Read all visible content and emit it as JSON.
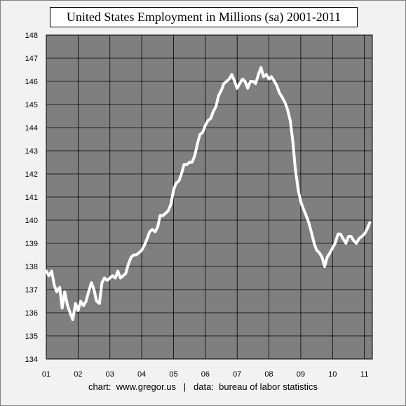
{
  "chart_data": {
    "type": "line",
    "title": "United States Employment in Millions (sa) 2001-2011",
    "footer": "chart:  www.gregor.us   |   data:  bureau of labor statistics",
    "ylim": [
      134,
      148
    ],
    "yticks": [
      "134",
      "135",
      "136",
      "137",
      "138",
      "139",
      "140",
      "141",
      "142",
      "143",
      "144",
      "145",
      "146",
      "147",
      "148"
    ],
    "xlim": [
      2001,
      2011.25
    ],
    "xticks": [
      {
        "value": 2001,
        "label": "01"
      },
      {
        "value": 2002,
        "label": "02"
      },
      {
        "value": 2003,
        "label": "03"
      },
      {
        "value": 2004,
        "label": "04"
      },
      {
        "value": 2005,
        "label": "05"
      },
      {
        "value": 2006,
        "label": "06"
      },
      {
        "value": 2007,
        "label": "07"
      },
      {
        "value": 2008,
        "label": "08"
      },
      {
        "value": 2009,
        "label": "09"
      },
      {
        "value": 2010,
        "label": "10"
      },
      {
        "value": 2011,
        "label": "11"
      }
    ],
    "grid": true,
    "colors": {
      "plot_bg": "#7f7f7f",
      "line": "#ffffff",
      "grid": "#000000"
    },
    "series": [
      {
        "x": [
          2001.0,
          2001.08,
          2001.17,
          2001.25,
          2001.33,
          2001.42,
          2001.5,
          2001.58,
          2001.67,
          2001.75,
          2001.83,
          2001.92,
          2002.0,
          2002.08,
          2002.17,
          2002.25,
          2002.33,
          2002.42,
          2002.5,
          2002.58,
          2002.67,
          2002.75,
          2002.83,
          2002.92,
          2003.0,
          2003.08,
          2003.17,
          2003.25,
          2003.33,
          2003.42,
          2003.5,
          2003.58,
          2003.67,
          2003.75,
          2003.83,
          2003.92,
          2004.0,
          2004.08,
          2004.17,
          2004.25,
          2004.33,
          2004.42,
          2004.5,
          2004.58,
          2004.67,
          2004.75,
          2004.83,
          2004.92,
          2005.0,
          2005.08,
          2005.17,
          2005.25,
          2005.33,
          2005.42,
          2005.5,
          2005.58,
          2005.67,
          2005.75,
          2005.83,
          2005.92,
          2006.0,
          2006.08,
          2006.17,
          2006.25,
          2006.33,
          2006.42,
          2006.5,
          2006.58,
          2006.67,
          2006.75,
          2006.83,
          2006.92,
          2007.0,
          2007.08,
          2007.17,
          2007.25,
          2007.33,
          2007.42,
          2007.5,
          2007.58,
          2007.67,
          2007.75,
          2007.83,
          2007.92,
          2008.0,
          2008.08,
          2008.17,
          2008.25,
          2008.33,
          2008.42,
          2008.5,
          2008.58,
          2008.67,
          2008.75,
          2008.83,
          2008.92,
          2009.0,
          2009.08,
          2009.17,
          2009.25,
          2009.33,
          2009.42,
          2009.5,
          2009.58,
          2009.67,
          2009.75,
          2009.83,
          2009.92,
          2010.0,
          2010.08,
          2010.17,
          2010.25,
          2010.33,
          2010.42,
          2010.5,
          2010.58,
          2010.67,
          2010.75,
          2010.83,
          2010.92,
          2011.0,
          2011.08,
          2011.17
        ],
        "values": [
          137.8,
          137.6,
          137.8,
          137.2,
          136.9,
          137.1,
          136.2,
          136.9,
          136.3,
          136.0,
          135.7,
          136.4,
          136.1,
          136.5,
          136.3,
          136.5,
          136.9,
          137.3,
          137.0,
          136.5,
          136.4,
          137.3,
          137.5,
          137.4,
          137.5,
          137.6,
          137.5,
          137.8,
          137.5,
          137.6,
          137.7,
          138.1,
          138.4,
          138.5,
          138.5,
          138.6,
          138.7,
          138.9,
          139.2,
          139.5,
          139.6,
          139.5,
          139.7,
          140.2,
          140.2,
          140.3,
          140.4,
          140.7,
          141.3,
          141.6,
          141.7,
          142.0,
          142.4,
          142.4,
          142.5,
          142.5,
          142.8,
          143.3,
          143.7,
          143.8,
          144.1,
          144.3,
          144.4,
          144.7,
          144.9,
          145.4,
          145.6,
          145.9,
          146.0,
          146.1,
          146.3,
          146.0,
          145.7,
          145.9,
          146.1,
          146.0,
          145.7,
          146.0,
          146.0,
          145.9,
          146.3,
          146.6,
          146.2,
          146.3,
          146.1,
          146.2,
          146.0,
          145.8,
          145.5,
          145.3,
          145.1,
          144.8,
          144.3,
          143.4,
          142.2,
          141.3,
          140.8,
          140.5,
          140.2,
          139.9,
          139.5,
          139.0,
          138.7,
          138.6,
          138.4,
          138.0,
          138.4,
          138.6,
          138.8,
          139.0,
          139.4,
          139.4,
          139.2,
          139.0,
          139.3,
          139.3,
          139.1,
          139.0,
          139.2,
          139.3,
          139.4,
          139.6,
          139.9
        ]
      }
    ]
  }
}
